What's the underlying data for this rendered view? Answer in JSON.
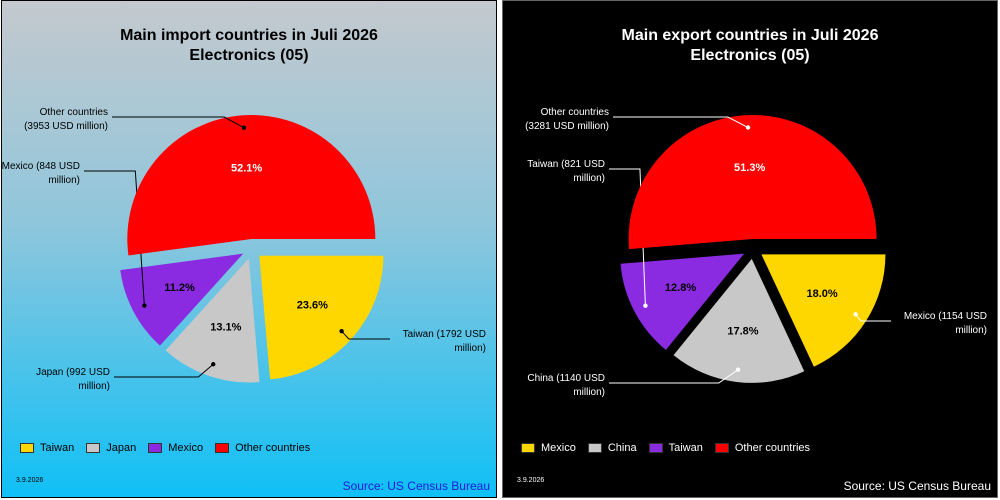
{
  "charts": [
    {
      "title_line1": "Main import countries in Juli 2026",
      "title_line2": "Electronics (05)",
      "date": "3.9.2026",
      "source": "Source: US Census Bureau",
      "theme": "light",
      "legend": [
        {
          "label": "Taiwan",
          "color": "#ffd700"
        },
        {
          "label": "Japan",
          "color": "#c8c8c8"
        },
        {
          "label": "Mexico",
          "color": "#8a2be2"
        },
        {
          "label": "Other countries",
          "color": "#ff0000"
        }
      ]
    },
    {
      "title_line1": "Main export countries in Juli 2026",
      "title_line2": "Electronics (05)",
      "date": "3.9.2026",
      "source": "Source: US Census Bureau",
      "theme": "dark",
      "legend": [
        {
          "label": "Mexico",
          "color": "#ffd700"
        },
        {
          "label": "China",
          "color": "#c8c8c8"
        },
        {
          "label": "Taiwan",
          "color": "#8a2be2"
        },
        {
          "label": "Other countries",
          "color": "#ff0000"
        }
      ]
    }
  ],
  "chart_data": [
    {
      "type": "pie",
      "title": "Main import countries in Juli 2026 Electronics (05)",
      "slices": [
        {
          "name": "Taiwan",
          "value": 1792,
          "percent": 23.6,
          "label_line1": "Taiwan (1792 USD",
          "label_line2": "million)",
          "color": "#ffd700"
        },
        {
          "name": "Japan",
          "value": 992,
          "percent": 13.1,
          "label_line1": "Japan (992 USD",
          "label_line2": "million)",
          "color": "#c8c8c8"
        },
        {
          "name": "Mexico",
          "value": 848,
          "percent": 11.2,
          "label_line1": "Mexico (848 USD",
          "label_line2": "million)",
          "color": "#8a2be2"
        },
        {
          "name": "Other countries",
          "value": 3953,
          "percent": 52.1,
          "label_line1": "Other countries",
          "label_line2": "(3953 USD million)",
          "color": "#ff0000"
        }
      ],
      "pct_labels": [
        "23.6%",
        "13.1%",
        "11.2%",
        "52.1%"
      ],
      "legend_placement": "bottom-left",
      "unit": "USD million"
    },
    {
      "type": "pie",
      "title": "Main export countries in Juli 2026 Electronics (05)",
      "slices": [
        {
          "name": "Mexico",
          "value": 1154,
          "percent": 18.0,
          "label_line1": "Mexico (1154 USD",
          "label_line2": "million)",
          "color": "#ffd700"
        },
        {
          "name": "China",
          "value": 1140,
          "percent": 17.8,
          "label_line1": "China (1140 USD",
          "label_line2": "million)",
          "color": "#c8c8c8"
        },
        {
          "name": "Taiwan",
          "value": 821,
          "percent": 12.8,
          "label_line1": "Taiwan (821 USD",
          "label_line2": "million)",
          "color": "#8a2be2"
        },
        {
          "name": "Other countries",
          "value": 3281,
          "percent": 51.3,
          "label_line1": "Other countries",
          "label_line2": "(3281 USD million)",
          "color": "#ff0000"
        }
      ],
      "pct_labels": [
        "18.0%",
        "17.8%",
        "12.8%",
        "51.3%"
      ],
      "legend_placement": "bottom-left",
      "unit": "USD million"
    }
  ]
}
